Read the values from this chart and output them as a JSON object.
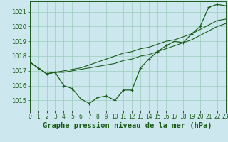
{
  "title": "Graphe pression niveau de la mer (hPa)",
  "background_color": "#cce8ee",
  "grid_color": "#99ccbb",
  "line_color": "#1a5c1a",
  "marker_color": "#1a5c1a",
  "hours": [
    0,
    1,
    2,
    3,
    4,
    5,
    6,
    7,
    8,
    9,
    10,
    11,
    12,
    13,
    14,
    15,
    16,
    17,
    18,
    19,
    20,
    21,
    22,
    23
  ],
  "series1": [
    1017.6,
    1017.2,
    1016.8,
    1016.9,
    1016.0,
    1015.8,
    1015.1,
    1014.8,
    1015.2,
    1015.3,
    1015.0,
    1015.7,
    1015.7,
    1017.2,
    1017.8,
    1018.3,
    1018.7,
    1019.0,
    1018.9,
    1019.5,
    1020.0,
    1021.3,
    1021.5,
    1021.4
  ],
  "series2": [
    1017.6,
    1017.2,
    1016.8,
    1016.9,
    1016.9,
    1017.0,
    1017.1,
    1017.2,
    1017.3,
    1017.4,
    1017.5,
    1017.7,
    1017.8,
    1018.0,
    1018.1,
    1018.3,
    1018.5,
    1018.7,
    1018.9,
    1019.1,
    1019.4,
    1019.7,
    1020.0,
    1020.2
  ],
  "series3": [
    1017.6,
    1017.2,
    1016.8,
    1016.9,
    1017.0,
    1017.1,
    1017.2,
    1017.4,
    1017.6,
    1017.8,
    1018.0,
    1018.2,
    1018.3,
    1018.5,
    1018.6,
    1018.8,
    1019.0,
    1019.1,
    1019.3,
    1019.5,
    1019.8,
    1020.1,
    1020.4,
    1020.5
  ],
  "ylim_min": 1014.3,
  "ylim_max": 1021.7,
  "yticks": [
    1015,
    1016,
    1017,
    1018,
    1019,
    1020,
    1021
  ],
  "xlabel_fontsize": 7.5,
  "tick_fontsize": 6,
  "title_color": "#1a5c1a",
  "xlabel_color": "#1a5c1a"
}
